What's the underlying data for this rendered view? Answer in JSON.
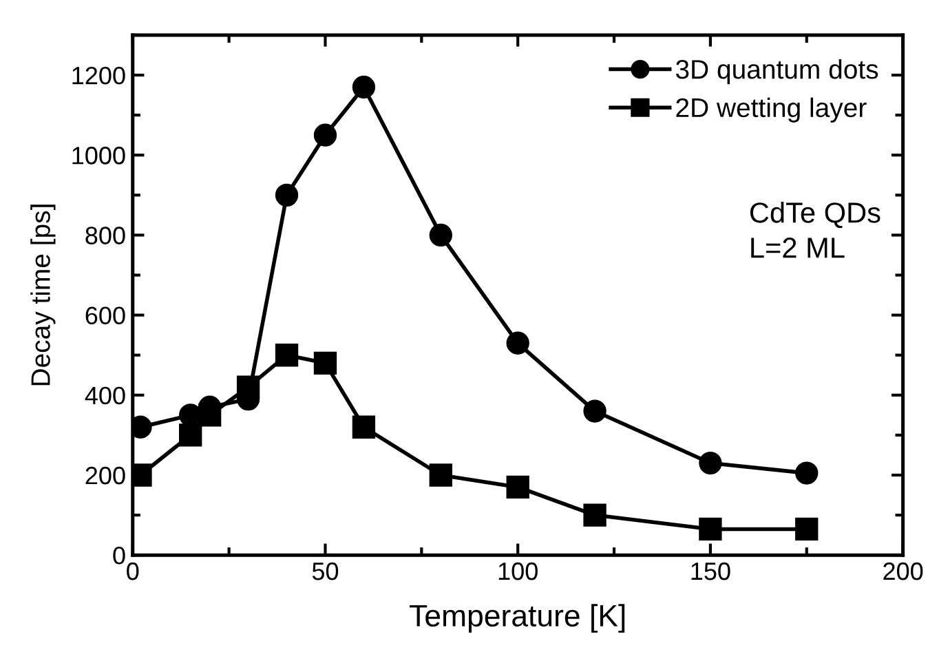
{
  "chart_data": {
    "type": "line",
    "xlabel": "Temperature [K]",
    "ylabel": "Decay time [ps]",
    "x": [
      2,
      15,
      20,
      30,
      40,
      50,
      60,
      80,
      100,
      120,
      150,
      175
    ],
    "series": [
      {
        "name": "3D quantum dots",
        "color": "#000000",
        "marker": "circle",
        "values": [
          320,
          350,
          370,
          390,
          900,
          1050,
          1170,
          800,
          530,
          360,
          230,
          205
        ]
      },
      {
        "name": "2D wetting layer",
        "color": "#000000",
        "marker": "square",
        "values": [
          200,
          300,
          350,
          420,
          500,
          480,
          320,
          200,
          170,
          100,
          65,
          65
        ]
      }
    ],
    "xlim": [
      0,
      200
    ],
    "xticks": [
      0,
      50,
      100,
      150,
      200
    ],
    "ylim": [
      0,
      1300
    ],
    "yticks": [
      0,
      200,
      400,
      600,
      800,
      1000,
      1200
    ],
    "annotations": [
      "CdTe QDs\nL=2 ML"
    ],
    "grid": false,
    "legend": "top right",
    "line_style": "solid"
  }
}
